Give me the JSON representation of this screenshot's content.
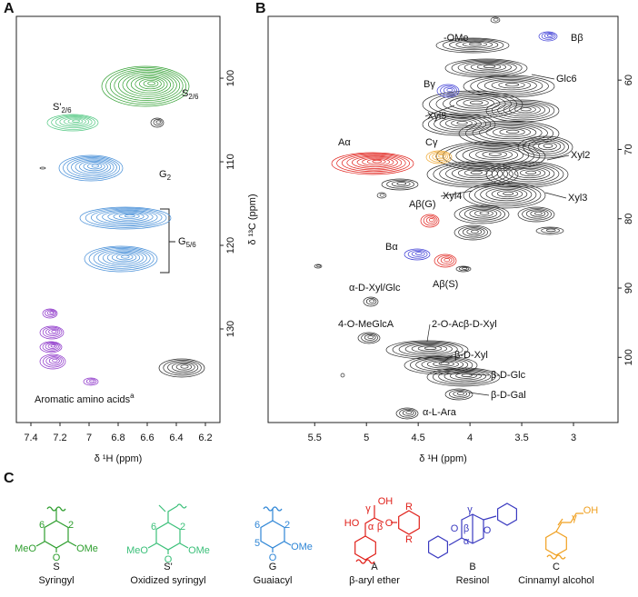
{
  "chart_data": [
    {
      "type": "contour",
      "panel": "A",
      "x_label": "δ ¹H (ppm)",
      "y_label": "δ ¹³C (ppm)",
      "xlim": [
        7.5,
        6.1
      ],
      "xticks": [
        7.4,
        7.2,
        7.0,
        6.8,
        6.6,
        6.4,
        6.2
      ],
      "ylim": [
        92.6,
        141.2
      ],
      "yticks": [
        100,
        110,
        120,
        130
      ],
      "annotations": [
        {
          "text": "S'",
          "sub": "2/6"
        },
        {
          "text": "S",
          "sub": "2/6"
        },
        {
          "text": "G",
          "sub": "2"
        },
        {
          "text": "G",
          "sub": "5/6"
        },
        {
          "text": "Aromatic amino acids",
          "sup": "a"
        }
      ]
    },
    {
      "type": "contour",
      "panel": "B",
      "x_label": "δ ¹H (ppm)",
      "y_label": "δ ¹³C (ppm)",
      "xlim": [
        5.95,
        2.57
      ],
      "xticks": [
        5.5,
        5.0,
        4.5,
        4.0,
        3.5,
        3.0
      ],
      "ylim": [
        50.8,
        109.4
      ],
      "yticks": [
        60,
        70,
        80,
        90,
        100
      ],
      "annotations": [
        {
          "text": "-OMe"
        },
        {
          "text": "Bβ"
        },
        {
          "text": "Glc6"
        },
        {
          "text": "Bγ"
        },
        {
          "text": "Xyl5"
        },
        {
          "text": "Aα"
        },
        {
          "text": "Cγ"
        },
        {
          "text": "Xyl2"
        },
        {
          "text": "Xyl4"
        },
        {
          "text": "Xyl3"
        },
        {
          "text": "Aβ(G)"
        },
        {
          "text": "Bα"
        },
        {
          "text": "Aβ(S)"
        },
        {
          "text": "α-D-Xyl/Glc"
        },
        {
          "text": "4-O-MeGlcA"
        },
        {
          "text": "2-O-Acβ-D-Xyl"
        },
        {
          "text": "β-D-Xyl"
        },
        {
          "text": "β-D-Glc"
        },
        {
          "text": "β-D-Gal"
        },
        {
          "text": "α-L-Ara"
        }
      ]
    }
  ],
  "structures_panel": {
    "label": "C",
    "structures": [
      {
        "code": "S",
        "name": "Syringyl",
        "color": "#2e9e2e",
        "labels": [
          "6",
          "2",
          "MeO",
          "OMe",
          "O"
        ]
      },
      {
        "code": "S'",
        "name": "Oxidized syringyl",
        "color": "#3cc07a",
        "labels": [
          "6",
          "2",
          "MeO",
          "OMe",
          "O"
        ]
      },
      {
        "code": "G",
        "name": "Guaiacyl",
        "color": "#2f86d6",
        "labels": [
          "6",
          "5",
          "2",
          "OMe",
          "O"
        ]
      },
      {
        "code": "A",
        "name": "β-aryl ether",
        "color": "#e0201a",
        "labels": [
          "HO",
          "OH",
          "α",
          "β",
          "γ",
          "O",
          "R",
          "R"
        ]
      },
      {
        "code": "B",
        "name": "Resinol",
        "color": "#3a3ac0",
        "labels": [
          "γ",
          "β",
          "α",
          "O",
          "O"
        ]
      },
      {
        "code": "C",
        "name": "Cinnamyl alcohol",
        "color": "#f0a020",
        "labels": [
          "γ",
          "OH"
        ]
      }
    ]
  }
}
